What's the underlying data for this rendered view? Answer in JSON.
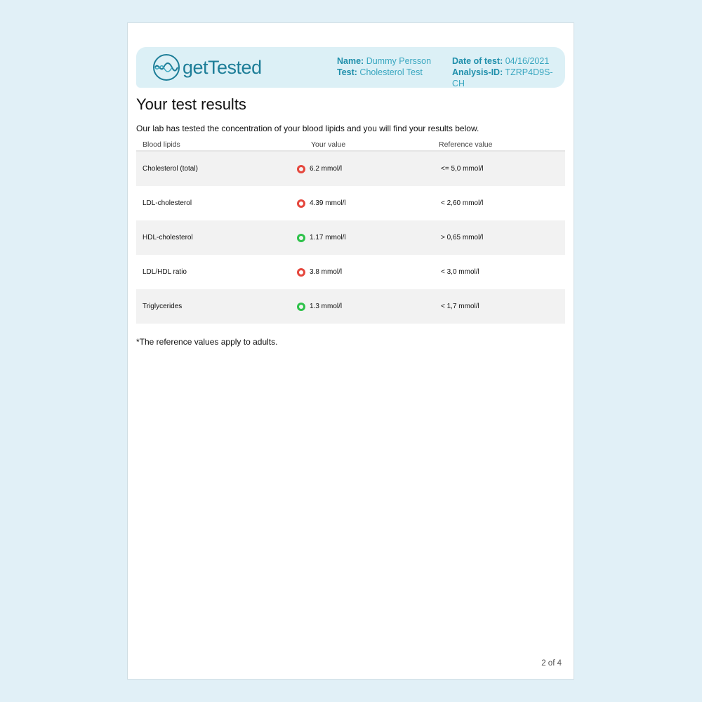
{
  "header": {
    "logo_text": "getTested",
    "name_label": "Name:",
    "name": "Dummy Persson",
    "test_label": "Test:",
    "test": "Cholesterol Test",
    "date_label": "Date of test:",
    "date": "04/16/2021",
    "analysis_label": "Analysis-ID:",
    "analysis_id": "TZRP4D9S-CH"
  },
  "title": "Your test results",
  "intro": "Our lab has tested the concentration of your blood lipids and you will find your results below.",
  "table": {
    "columns": [
      "Blood lipids",
      "Your value",
      "Reference value"
    ],
    "rows": [
      {
        "name": "Cholesterol (total)",
        "value": "6.2 mmol/l",
        "status": "high",
        "reference": "<= 5,0 mmol/l"
      },
      {
        "name": "LDL-cholesterol",
        "value": "4.39 mmol/l",
        "status": "high",
        "reference": "< 2,60 mmol/l"
      },
      {
        "name": "HDL-cholesterol",
        "value": "1.17 mmol/l",
        "status": "normal",
        "reference": "> 0,65 mmol/l"
      },
      {
        "name": "LDL/HDL ratio",
        "value": "3.8 mmol/l",
        "status": "high",
        "reference": "< 3,0 mmol/l"
      },
      {
        "name": "Triglycerides",
        "value": "1.3 mmol/l",
        "status": "normal",
        "reference": "< 1,7 mmol/l"
      }
    ]
  },
  "status_colors": {
    "high": "#e5473d",
    "normal": "#2ec24a"
  },
  "footnote": "*The reference values apply to adults.",
  "page_number": "2 of 4"
}
